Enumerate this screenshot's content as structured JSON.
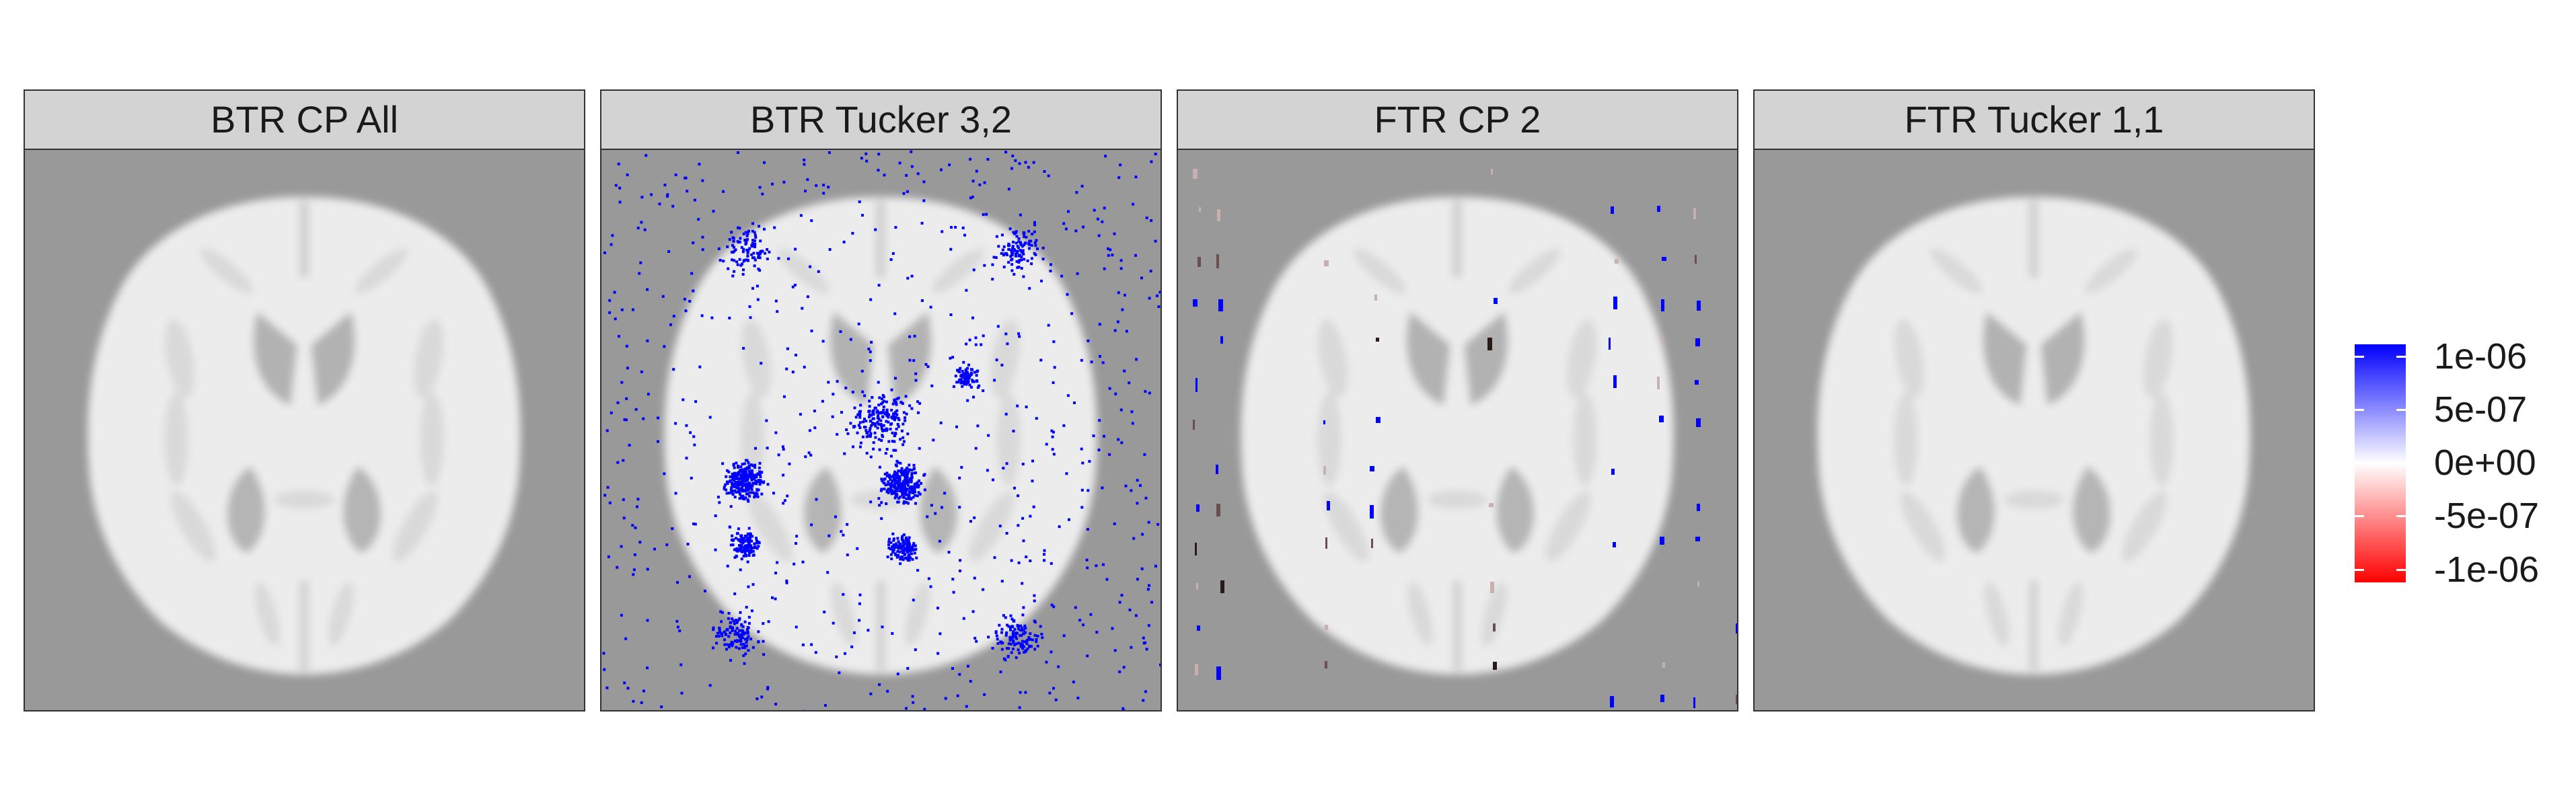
{
  "chart_data": {
    "type": "heatmap",
    "title": "",
    "facets": [
      "BTR CP All",
      "BTR Tucker 3,2",
      "FTR CP 2",
      "FTR Tucker 1,1"
    ],
    "background": "brain-template-axial-slice",
    "color_scale": {
      "low": "#ff0000",
      "mid": "#ffffff",
      "high": "#0000ff",
      "limits": [
        -1e-06,
        1e-06
      ],
      "breaks": [
        1e-06,
        5e-07,
        0,
        -5e-07,
        -1e-06
      ],
      "labels": [
        "1e-06",
        "5e-07",
        "0e+00",
        "-5e-07",
        "-1e-06"
      ]
    },
    "colors": {
      "panel_bg": "#999999",
      "strip_bg": "#d3d3d3",
      "brain": "#ececec"
    },
    "legend_position": "right"
  }
}
